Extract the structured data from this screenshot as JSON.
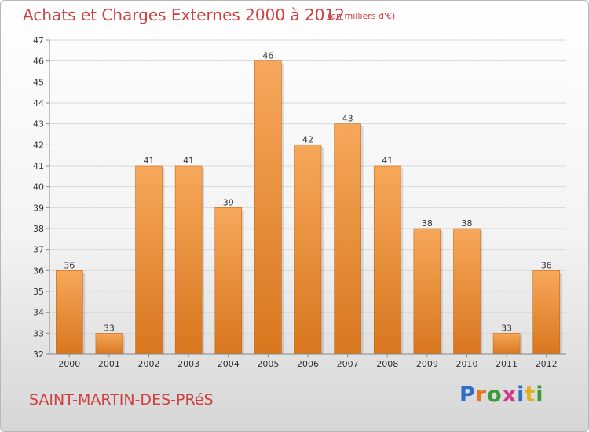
{
  "header": {
    "title": "Achats et Charges Externes 2000 à 2012",
    "subtitle": "(en milliers d'€)"
  },
  "footer": {
    "location": "SAINT-MARTIN-DES-PRéS",
    "logo_letters": [
      "P",
      "r",
      "o",
      "x",
      "i",
      "t",
      "i"
    ]
  },
  "colors": {
    "title": "#d04040",
    "bar_top": "#f6a85a",
    "bar_bottom": "#d9761e",
    "logo": [
      "#2f6fc6",
      "#e07a20",
      "#3a9a3a",
      "#d03a8a",
      "#2f6fc6",
      "#e0b020",
      "#3a9a3a"
    ]
  },
  "chart_data": {
    "type": "bar",
    "categories": [
      "2000",
      "2001",
      "2002",
      "2003",
      "2004",
      "2005",
      "2006",
      "2007",
      "2008",
      "2009",
      "2010",
      "2011",
      "2012"
    ],
    "values": [
      36,
      33,
      41,
      41,
      39,
      46,
      42,
      43,
      41,
      38,
      38,
      33,
      36
    ],
    "ylim": [
      32,
      47
    ],
    "yticks": [
      32,
      33,
      34,
      35,
      36,
      37,
      38,
      39,
      40,
      41,
      42,
      43,
      44,
      45,
      46,
      47
    ],
    "grid": true
  }
}
